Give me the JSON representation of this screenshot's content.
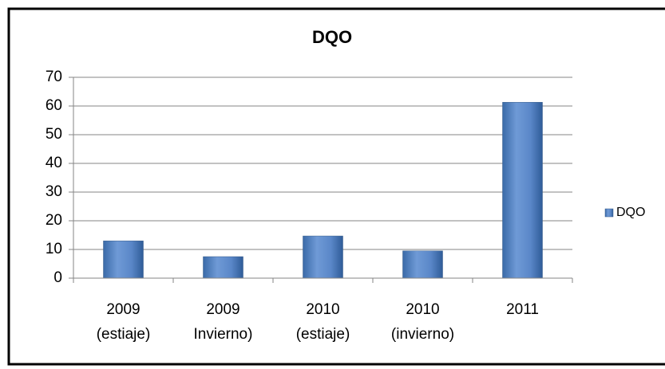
{
  "chart_data": {
    "type": "bar",
    "title": "DQO",
    "categories": [
      [
        "2009",
        "(estiaje)"
      ],
      [
        "2009",
        "Invierno)"
      ],
      [
        "2010",
        "(estiaje)"
      ],
      [
        "2010",
        "(invierno)"
      ],
      [
        "2011"
      ]
    ],
    "series": [
      {
        "name": "DQO",
        "color": "#4f81bd",
        "values": [
          13,
          7.5,
          14.7,
          9.5,
          61.3
        ]
      }
    ],
    "ylim": [
      0,
      70
    ],
    "yticks": [
      0,
      10,
      20,
      30,
      40,
      50,
      60,
      70
    ],
    "grid": true,
    "legend": "right"
  }
}
